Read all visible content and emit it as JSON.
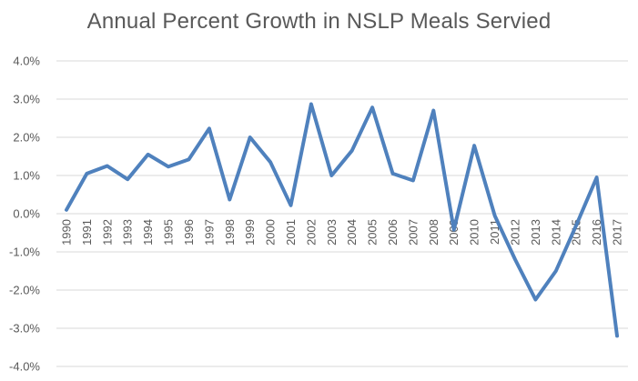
{
  "chart_data": {
    "type": "line",
    "title": "Annual Percent Growth in NSLP Meals Servied",
    "xlabel": "",
    "ylabel": "",
    "ylim": [
      -4.0,
      4.0
    ],
    "ytick_values": [
      -4.0,
      -3.0,
      -2.0,
      -1.0,
      0.0,
      1.0,
      2.0,
      3.0,
      4.0
    ],
    "ytick_labels": [
      "-4.0%",
      "-3.0%",
      "-2.0%",
      "-1.0%",
      "0.0%",
      "1.0%",
      "2.0%",
      "3.0%",
      "4.0%"
    ],
    "grid": true,
    "legend": "none",
    "line_color": "#4F81BD",
    "grid_color": "#D9D9D9",
    "categories": [
      "1990",
      "1991",
      "1992",
      "1993",
      "1994",
      "1995",
      "1996",
      "1997",
      "1998",
      "1999",
      "2000",
      "2001",
      "2002",
      "2003",
      "2004",
      "2005",
      "2006",
      "2007",
      "2008",
      "2009",
      "2010",
      "2011",
      "2012",
      "2013",
      "2014",
      "2015",
      "2016",
      "2017"
    ],
    "series": [
      {
        "name": "Annual Percent Growth",
        "values": [
          0.1,
          1.05,
          1.25,
          0.9,
          1.55,
          1.23,
          1.42,
          2.23,
          0.37,
          2.0,
          1.35,
          0.22,
          2.87,
          1.0,
          1.65,
          2.78,
          1.05,
          0.87,
          2.7,
          -0.42,
          1.78,
          -0.05,
          -1.2,
          -2.25,
          -1.5,
          -0.3,
          0.95,
          -3.2
        ]
      }
    ]
  }
}
